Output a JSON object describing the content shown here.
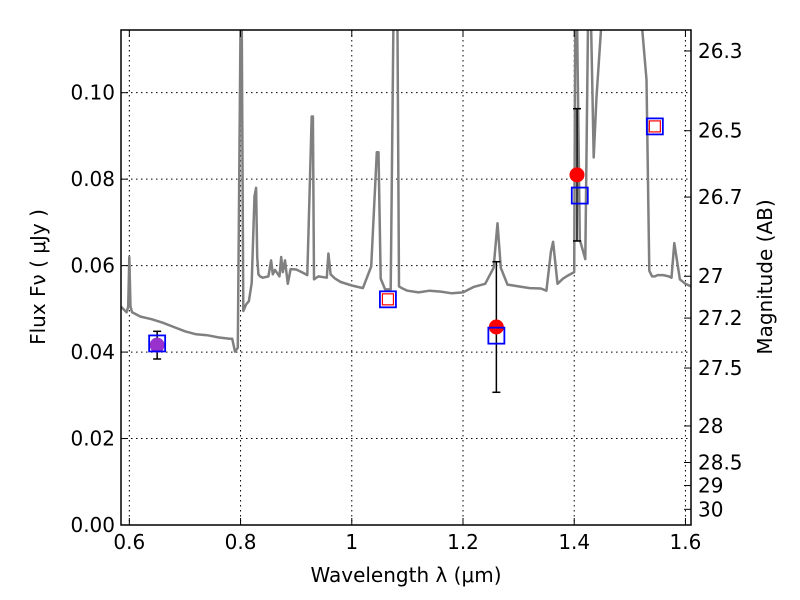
{
  "chart_data": {
    "type": "line",
    "xlabel": "Wavelength  λ (μm)",
    "ylabel": "Flux  Fν  ( μJy )",
    "ylabel_right": "Magnitude (AB)",
    "xlim": [
      0.585,
      1.61
    ],
    "ylim": [
      0.0,
      0.1145
    ],
    "x_ticks": [
      0.6,
      0.8,
      1.0,
      1.2,
      1.4,
      1.6
    ],
    "x_tick_labels": [
      "0.6",
      "0.8",
      "1",
      "1.2",
      "1.4",
      "1.6"
    ],
    "y_ticks": [
      0.0,
      0.02,
      0.04,
      0.06,
      0.08,
      0.1
    ],
    "y_tick_labels": [
      "0.00",
      "0.02",
      "0.04",
      "0.06",
      "0.08",
      "0.10"
    ],
    "mag_ticks": [
      "26.3",
      "26.5",
      "26.7",
      "27",
      "27.2",
      "27.5",
      "28",
      "28.5",
      "29",
      "30"
    ],
    "grid": true,
    "colors": {
      "model": "#808080",
      "observed": "#ff0000",
      "overlap": "#9932cc",
      "synthetic": "#0000ff",
      "errorbar": "#000000"
    },
    "series": [
      {
        "kind": "model_spectrum",
        "x": [
          0.585,
          0.595,
          0.598,
          0.6,
          0.602,
          0.605,
          0.62,
          0.64,
          0.66,
          0.68,
          0.7,
          0.72,
          0.74,
          0.76,
          0.78,
          0.785,
          0.79,
          0.795,
          0.8,
          0.802,
          0.805,
          0.81,
          0.815,
          0.82,
          0.825,
          0.828,
          0.83,
          0.832,
          0.835,
          0.84,
          0.85,
          0.855,
          0.858,
          0.862,
          0.87,
          0.873,
          0.876,
          0.88,
          0.885,
          0.89,
          0.9,
          0.91,
          0.92,
          0.928,
          0.93,
          0.932,
          0.94,
          0.955,
          0.958,
          0.962,
          0.97,
          0.98,
          1.0,
          1.02,
          1.035,
          1.045,
          1.048,
          1.052,
          1.06,
          1.07,
          1.075,
          1.078,
          1.082,
          1.085,
          1.09,
          1.1,
          1.12,
          1.14,
          1.16,
          1.18,
          1.2,
          1.22,
          1.24,
          1.255,
          1.262,
          1.268,
          1.28,
          1.3,
          1.32,
          1.34,
          1.35,
          1.358,
          1.362,
          1.37,
          1.38,
          1.39,
          1.4,
          1.402,
          1.405,
          1.41,
          1.42,
          1.425,
          1.43,
          1.435,
          1.44,
          1.45,
          1.46,
          1.47,
          1.48,
          1.49,
          1.5,
          1.52,
          1.53,
          1.535,
          1.54,
          1.545,
          1.55,
          1.56,
          1.57,
          1.575,
          1.58,
          1.59,
          1.6,
          1.61
        ],
        "y": [
          0.0505,
          0.0492,
          0.0505,
          0.062,
          0.0505,
          0.0492,
          0.0482,
          0.0476,
          0.0468,
          0.0458,
          0.0448,
          0.0441,
          0.0439,
          0.0434,
          0.0431,
          0.0431,
          0.0401,
          0.041,
          0.118,
          0.118,
          0.0495,
          0.051,
          0.0518,
          0.056,
          0.076,
          0.078,
          0.062,
          0.058,
          0.0575,
          0.0572,
          0.0575,
          0.0612,
          0.058,
          0.059,
          0.0575,
          0.062,
          0.0585,
          0.0612,
          0.0558,
          0.0592,
          0.0591,
          0.0585,
          0.0578,
          0.0945,
          0.0945,
          0.0568,
          0.0575,
          0.0572,
          0.0628,
          0.058,
          0.057,
          0.0562,
          0.0554,
          0.0548,
          0.0598,
          0.0862,
          0.0862,
          0.057,
          0.0545,
          0.0545,
          0.118,
          0.118,
          0.118,
          0.0552,
          0.0548,
          0.0542,
          0.0538,
          0.0542,
          0.054,
          0.0536,
          0.0538,
          0.0551,
          0.0558,
          0.0595,
          0.0698,
          0.0595,
          0.0556,
          0.0552,
          0.0548,
          0.0547,
          0.0542,
          0.0632,
          0.0655,
          0.0558,
          0.057,
          0.0578,
          0.0585,
          0.118,
          0.118,
          0.066,
          0.0615,
          0.118,
          0.118,
          0.085,
          0.099,
          0.118,
          0.118,
          0.118,
          0.118,
          0.118,
          0.118,
          0.118,
          0.103,
          0.0588,
          0.0575,
          0.0575,
          0.0578,
          0.0578,
          0.0575,
          0.0572,
          0.0652,
          0.0568,
          0.0558,
          0.0552
        ]
      },
      {
        "kind": "observed_photometry",
        "points": [
          {
            "x": 0.65,
            "y": 0.0416,
            "err": 0.0032
          },
          {
            "x": 1.26,
            "y": 0.0458,
            "err": 0.0151
          },
          {
            "x": 1.405,
            "y": 0.081,
            "err": 0.0153
          }
        ]
      },
      {
        "kind": "synthetic_photometry",
        "points": [
          {
            "x": 0.65,
            "y": 0.042
          },
          {
            "x": 1.065,
            "y": 0.0522
          },
          {
            "x": 1.26,
            "y": 0.0438
          },
          {
            "x": 1.41,
            "y": 0.0762
          },
          {
            "x": 1.545,
            "y": 0.0922
          }
        ]
      }
    ]
  }
}
